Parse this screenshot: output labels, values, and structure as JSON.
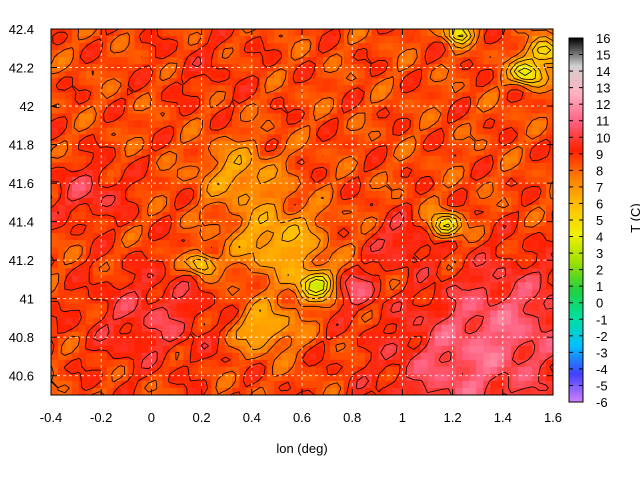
{
  "chart_data": {
    "type": "heatmap",
    "title": "",
    "xlabel": "lon (deg)",
    "ylabel": "",
    "colorbar_label": "T (C)",
    "xlim": [
      -0.4,
      1.6
    ],
    "ylim": [
      40.5,
      42.4
    ],
    "clim": [
      -6,
      16
    ],
    "x_ticks": [
      "-0.4",
      "-0.2",
      "0",
      "0.2",
      "0.4",
      "0.6",
      "0.8",
      "1",
      "1.2",
      "1.4",
      "1.6"
    ],
    "y_ticks": [
      "40.6",
      "40.8",
      "41",
      "41.2",
      "41.4",
      "41.6",
      "41.8",
      "42",
      "42.2",
      "42.4"
    ],
    "colorbar_ticks": [
      "-6",
      "-5",
      "-4",
      "-3",
      "-2",
      "-1",
      "0",
      "1",
      "2",
      "3",
      "4",
      "5",
      "6",
      "7",
      "8",
      "9",
      "10",
      "11",
      "12",
      "13",
      "14",
      "15",
      "16"
    ],
    "grid": true,
    "contours": true,
    "colormap": [
      "#d080ff",
      "#4040ff",
      "#00c0ff",
      "#00e0a0",
      "#20d040",
      "#a0e000",
      "#f0f000",
      "#ffc000",
      "#ff8000",
      "#ff2000",
      "#ff6080",
      "#ffb0c0",
      "#d0d0d0",
      "#000000"
    ],
    "approx_field": {
      "comment_free": true,
      "base": 8.5,
      "features": [
        {
          "lon": 1.25,
          "lat": 40.62,
          "t": 10.5,
          "r": 0.35
        },
        {
          "lon": 1.45,
          "lat": 40.95,
          "t": 10.0,
          "r": 0.3
        },
        {
          "lon": 0.0,
          "lat": 40.9,
          "t": 10.0,
          "r": 0.25
        },
        {
          "lon": -0.25,
          "lat": 41.55,
          "t": 10.0,
          "r": 0.15
        },
        {
          "lon": 0.2,
          "lat": 42.2,
          "t": 9.0,
          "r": 0.2
        },
        {
          "lon": 0.35,
          "lat": 41.65,
          "t": 6.5,
          "r": 0.15
        },
        {
          "lon": 0.5,
          "lat": 41.3,
          "t": 6.0,
          "r": 0.18
        },
        {
          "lon": 0.45,
          "lat": 40.85,
          "t": 6.0,
          "r": 0.12
        },
        {
          "lon": 0.66,
          "lat": 41.07,
          "t": 3.5,
          "r": 0.08
        },
        {
          "lon": 0.2,
          "lat": 41.18,
          "t": 4.0,
          "r": 0.05
        },
        {
          "lon": 1.17,
          "lat": 41.38,
          "t": 3.5,
          "r": 0.06
        },
        {
          "lon": 1.57,
          "lat": 42.28,
          "t": 3.5,
          "r": 0.06
        },
        {
          "lon": 1.5,
          "lat": 42.17,
          "t": 3.0,
          "r": 0.06
        },
        {
          "lon": 1.22,
          "lat": 42.38,
          "t": 3.5,
          "r": 0.05
        },
        {
          "lon": 0.8,
          "lat": 41.05,
          "t": 10.5,
          "r": 0.1
        },
        {
          "lon": 1.0,
          "lat": 41.3,
          "t": 10.0,
          "r": 0.12
        }
      ]
    }
  }
}
